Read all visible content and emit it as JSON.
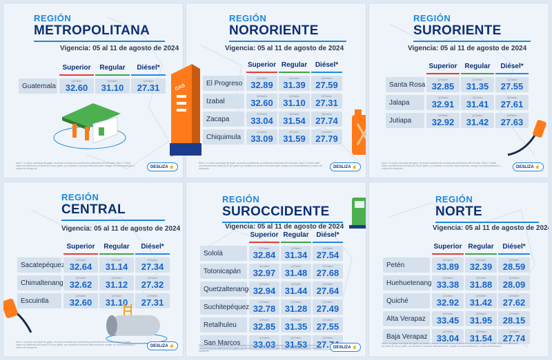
{
  "vigencia": {
    "label": "Vigencia:",
    "date": "05 al 11 de agosto de 2024"
  },
  "unit_label": "Q/Galón",
  "swipe_label": "DESLIZA",
  "fine_print": "Nota 1: el precio municipal del galón, se puede consultar las condiciones particulares del mercado. Nota 2: Puede haber una diferencia de hasta Q0.30 por galón, por cambios en precios internacionales, margen de comercialización y costos del transporte.",
  "colors": {
    "superior": "#e53935",
    "regular": "#43a047",
    "diesel": "#1e88e5",
    "title": "#0d2f73",
    "accent": "#1f86d9"
  },
  "regions": [
    {
      "small": "REGIÓN",
      "name": "METROPOLITANA",
      "headers": [
        "Superior",
        "Regular",
        "Diésel*"
      ],
      "rows": [
        {
          "dept": "Guatemala",
          "superior": "32.60",
          "regular": "31.10",
          "diesel": "27.31"
        }
      ]
    },
    {
      "small": "REGIÓN",
      "name": "NORORIENTE",
      "headers": [
        "Superior",
        "Regular",
        "Diésel*"
      ],
      "rows": [
        {
          "dept": "El Progreso",
          "superior": "32.89",
          "regular": "31.39",
          "diesel": "27.59"
        },
        {
          "dept": "Izabal",
          "superior": "32.60",
          "regular": "31.10",
          "diesel": "27.31"
        },
        {
          "dept": "Zacapa",
          "superior": "33.04",
          "regular": "31.54",
          "diesel": "27.74"
        },
        {
          "dept": "Chiquimula",
          "superior": "33.09",
          "regular": "31.59",
          "diesel": "27.79"
        }
      ]
    },
    {
      "small": "REGIÓN",
      "name": "SURORIENTE",
      "headers": [
        "Superior",
        "Regular",
        "Diésel*"
      ],
      "rows": [
        {
          "dept": "Santa Rosa",
          "superior": "32.85",
          "regular": "31.35",
          "diesel": "27.55"
        },
        {
          "dept": "Jalapa",
          "superior": "32.91",
          "regular": "31.41",
          "diesel": "27.61"
        },
        {
          "dept": "Jutiapa",
          "superior": "32.92",
          "regular": "31.42",
          "diesel": "27.63"
        }
      ]
    },
    {
      "small": "REGIÓN",
      "name": "CENTRAL",
      "headers": [
        "Superior",
        "Regular",
        "Diésel*"
      ],
      "rows": [
        {
          "dept": "Sacatepéquez",
          "superior": "32.64",
          "regular": "31.14",
          "diesel": "27.34"
        },
        {
          "dept": "Chimaltenango",
          "superior": "32.62",
          "regular": "31.12",
          "diesel": "27.32"
        },
        {
          "dept": "Escuintla",
          "superior": "32.60",
          "regular": "31.10",
          "diesel": "27.31"
        }
      ]
    },
    {
      "small": "REGIÓN",
      "name": "SUROCCIDENTE",
      "headers": [
        "Superior",
        "Regular",
        "Diésel*"
      ],
      "rows": [
        {
          "dept": "Sololá",
          "superior": "32.84",
          "regular": "31.34",
          "diesel": "27.54"
        },
        {
          "dept": "Totonicapán",
          "superior": "32.97",
          "regular": "31.48",
          "diesel": "27.68"
        },
        {
          "dept": "Quetzaltenango",
          "superior": "32.94",
          "regular": "31.44",
          "diesel": "27.64"
        },
        {
          "dept": "Suchitepéquez",
          "superior": "32.78",
          "regular": "31.28",
          "diesel": "27.49"
        },
        {
          "dept": "Retalhuleu",
          "superior": "32.85",
          "regular": "31.35",
          "diesel": "27.55"
        },
        {
          "dept": "San Marcos",
          "superior": "33.03",
          "regular": "31.53",
          "diesel": "27.74"
        }
      ]
    },
    {
      "small": "REGIÓN",
      "name": "NORTE",
      "headers": [
        "Superior",
        "Regular",
        "Diésel*"
      ],
      "rows": [
        {
          "dept": "Petén",
          "superior": "33.89",
          "regular": "32.39",
          "diesel": "28.59"
        },
        {
          "dept": "Huehuetenango",
          "superior": "33.38",
          "regular": "31.88",
          "diesel": "28.09"
        },
        {
          "dept": "Quiché",
          "superior": "32.92",
          "regular": "31.42",
          "diesel": "27.62"
        },
        {
          "dept": "Alta Verapaz",
          "superior": "33.45",
          "regular": "31.95",
          "diesel": "28.15"
        },
        {
          "dept": "Baja Verapaz",
          "superior": "33.04",
          "regular": "31.54",
          "diesel": "27.74"
        }
      ]
    }
  ],
  "illustrations": [
    "gas-station-icon",
    "gas-pole-sign-icon",
    "fuel-jerrycan-icon",
    "fuel-nozzle-icon",
    "fuel-tank-icon",
    "fuel-pump-icon"
  ]
}
